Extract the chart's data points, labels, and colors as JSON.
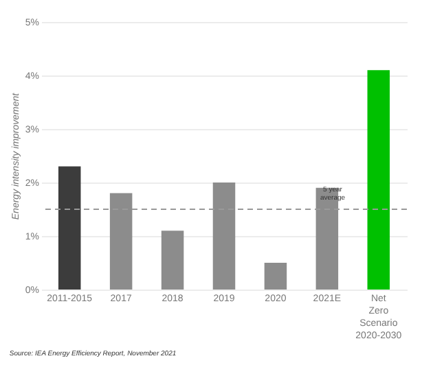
{
  "chart_data": {
    "type": "bar",
    "ylabel": "Energy intensity improvement",
    "categories": [
      "2011-2015",
      "2017",
      "2018",
      "2019",
      "2020",
      "2021E",
      "Net Zero Scenario 2020-2030"
    ],
    "values": [
      2.3,
      1.8,
      1.1,
      2.0,
      0.5,
      1.9,
      4.1
    ],
    "colors": [
      "#3c3c3c",
      "#8c8c8c",
      "#8c8c8c",
      "#8c8c8c",
      "#8c8c8c",
      "#8c8c8c",
      "#00c000"
    ],
    "ylim": [
      0,
      5
    ],
    "yticks": [
      {
        "value": 0,
        "label": "0%"
      },
      {
        "value": 1,
        "label": "1%"
      },
      {
        "value": 2,
        "label": "2%"
      },
      {
        "value": 3,
        "label": "3%"
      },
      {
        "value": 4,
        "label": "4%"
      },
      {
        "value": 5,
        "label": "5%"
      }
    ],
    "grid": "y",
    "ref_lines": [
      {
        "axis": "y",
        "value": 1.5,
        "label": "5 year average",
        "line_style": "dashed",
        "color": "#999999"
      }
    ],
    "annotations": [
      "Source: IEA Energy Efficiency Report, November 2021"
    ]
  }
}
